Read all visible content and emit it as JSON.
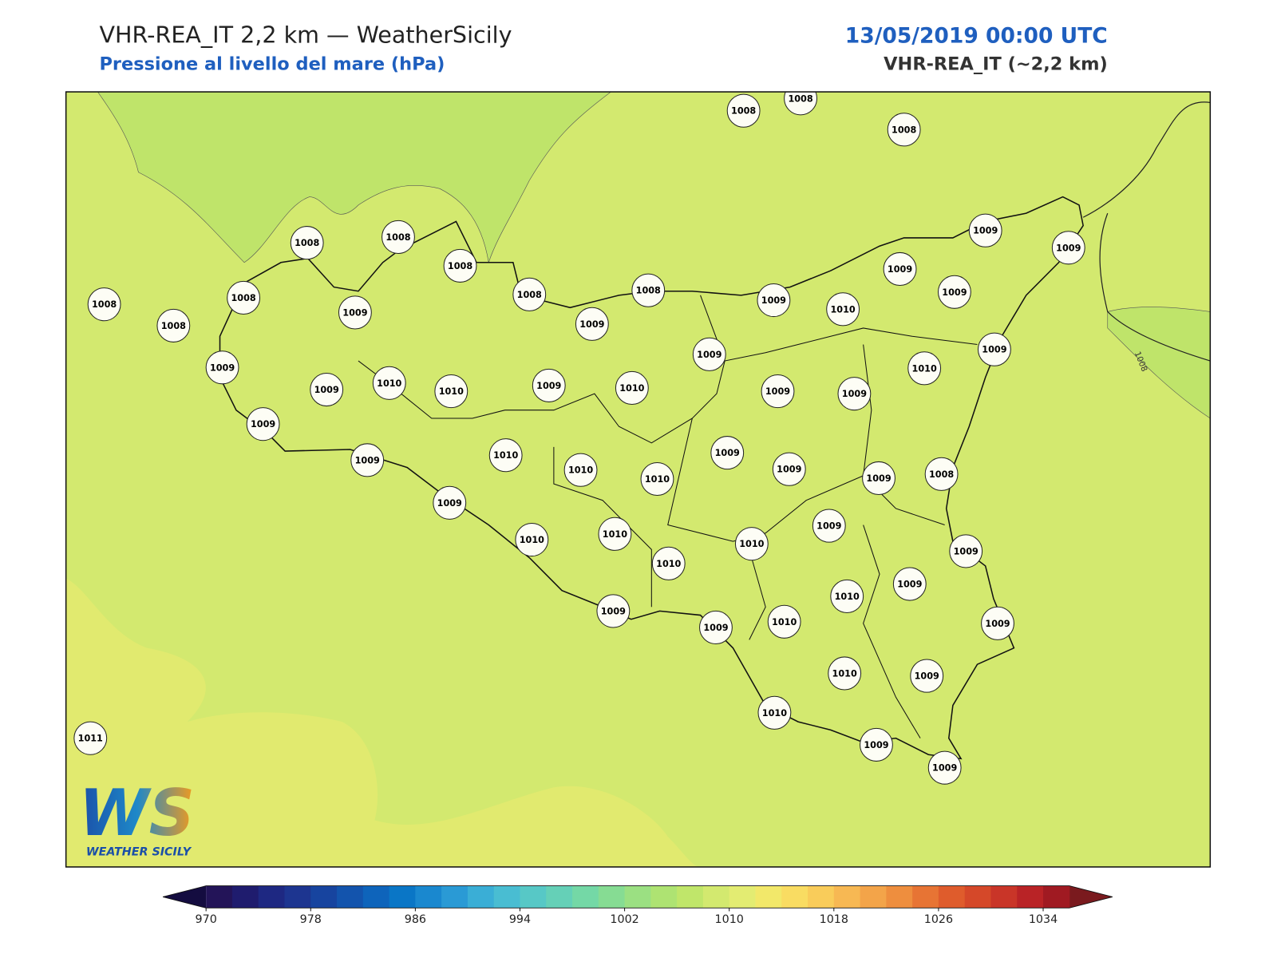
{
  "header": {
    "title": "VHR-REA_IT 2,2 km — WeatherSicily",
    "subtitle": "Pressione al livello del mare (hPa)",
    "datetime": "13/05/2019 00:00 UTC",
    "model": "VHR-REA_IT (~2,2 km)"
  },
  "map": {
    "contour_label": "1008",
    "stations": [
      1008,
      1008,
      1008,
      1008,
      1008,
      1008,
      1008,
      1008,
      1008,
      1008,
      1008,
      1009,
      1009,
      1009,
      1010,
      1009,
      1009,
      1009,
      1009,
      1009,
      1009,
      1010,
      1009,
      1009,
      1010,
      1010,
      1009,
      1010,
      1009,
      1009,
      1009,
      1010,
      1010,
      1010,
      1009,
      1009,
      1009,
      1008,
      1009,
      1009,
      1010,
      1010,
      1009,
      1010,
      1010,
      1009,
      1010,
      1009,
      1009,
      1009,
      1010,
      1009,
      1010,
      1009,
      1010,
      1009,
      1009,
      1011
    ]
  },
  "colorbar": {
    "lim": [
      970,
      1036
    ],
    "ticks": [
      970,
      978,
      986,
      994,
      1002,
      1010,
      1018,
      1026,
      1034
    ],
    "under": "#140c40",
    "over": "#7a1a1e",
    "colors": [
      "#231458",
      "#1f1c6e",
      "#1e2882",
      "#1d3590",
      "#17449f",
      "#1354ad",
      "#0e64bb",
      "#0a76c6",
      "#1a88cf",
      "#2a9ad5",
      "#3aaed6",
      "#49bdd2",
      "#57c8c6",
      "#65d0b7",
      "#74d8a6",
      "#86dc93",
      "#9be082",
      "#aee372",
      "#c0e66a",
      "#d3e96f",
      "#e3ec72",
      "#f2e86a",
      "#f9dc62",
      "#f9cc5a",
      "#f7b853",
      "#f3a449",
      "#ee8e3e",
      "#e77434",
      "#df5c2c",
      "#d54829",
      "#c93528",
      "#b92326",
      "#a01a22"
    ]
  },
  "logo": {
    "mark": "WS",
    "text": "WEATHER SICILY"
  }
}
